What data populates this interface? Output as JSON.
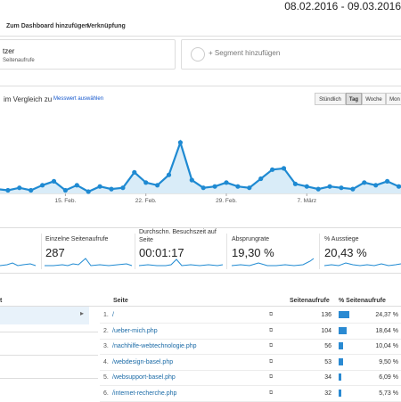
{
  "header": {
    "date_range": "08.02.2016 - 09.03.2016"
  },
  "toolbar": {
    "items": [
      "Zum Dashboard hinzufügen",
      "Verknüpfung"
    ]
  },
  "segments": [
    {
      "title": "tzer",
      "subtitle": "Seitenaufrufe"
    },
    {
      "title": "+ Segment hinzufügen"
    }
  ],
  "controls": {
    "compare_label": "im Vergleich zu",
    "metric_link": "Messwert auswählen",
    "granularity": [
      "Stündlich",
      "Tag",
      "Woche",
      "Mon"
    ],
    "active": "Tag"
  },
  "chart_data": {
    "type": "line",
    "x_tick_labels": [
      "15. Feb.",
      "22. Feb.",
      "29. Feb.",
      "7. März"
    ],
    "values": [
      42,
      41,
      43,
      41,
      45,
      48,
      41,
      45,
      40,
      44,
      42,
      43,
      55,
      47,
      45,
      53,
      78,
      49,
      43,
      44,
      47,
      44,
      43,
      50,
      57,
      58,
      46,
      44,
      42,
      44,
      43,
      42,
      47,
      45,
      48,
      44,
      46
    ],
    "color": "#1f8ad2",
    "fill": "#d9ecf8"
  },
  "cards": [
    {
      "label": "Einzelne Seitenaufrufe",
      "value": "287"
    },
    {
      "label": "Durchschn. Besuchszeit auf Seite",
      "value": "00:01:17"
    },
    {
      "label": "Absprungrate",
      "value": "19,30 %"
    },
    {
      "label": "% Ausstiege",
      "value": "20,43 %"
    }
  ],
  "table": {
    "left_header": "t",
    "headers": {
      "page": "Seite",
      "views": "Seitenaufrufe",
      "pct": "% Seitenaufrufe"
    },
    "rows": [
      {
        "n": "1.",
        "page": "/",
        "views": "136",
        "pct": "24,37 %",
        "share": 0.2437
      },
      {
        "n": "2.",
        "page": "/ueber-mich.php",
        "views": "104",
        "pct": "18,64 %",
        "share": 0.1864
      },
      {
        "n": "3.",
        "page": "/nachhilfe-webtechnologie.php",
        "views": "56",
        "pct": "10,04 %",
        "share": 0.1004
      },
      {
        "n": "4.",
        "page": "/webdesign-basel.php",
        "views": "53",
        "pct": "9,50 %",
        "share": 0.095
      },
      {
        "n": "5.",
        "page": "/websupport-basel.php",
        "views": "34",
        "pct": "6,09 %",
        "share": 0.0609
      },
      {
        "n": "6.",
        "page": "/internet-recherche.php",
        "views": "32",
        "pct": "5,73 %",
        "share": 0.0573
      }
    ]
  }
}
